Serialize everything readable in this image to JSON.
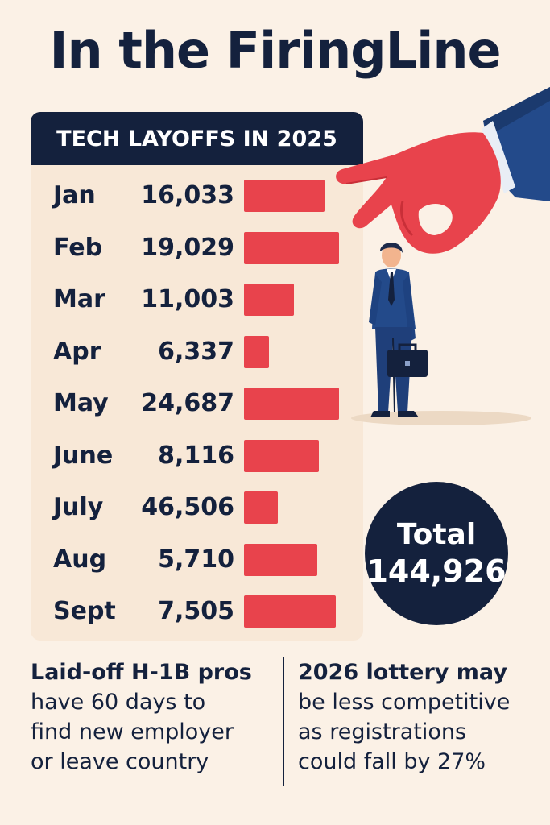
{
  "title": "In the FiringLine",
  "chart_data": {
    "type": "bar",
    "title": "TECH LAYOFFS IN 2025",
    "categories": [
      "Jan",
      "Feb",
      "Mar",
      "Apr",
      "May",
      "June",
      "July",
      "Aug",
      "Sept"
    ],
    "values": [
      16033,
      19029,
      11003,
      6337,
      24687,
      8116,
      46506,
      5710,
      7505
    ],
    "value_labels": [
      "16,033",
      "19,029",
      "11,003",
      "6,337",
      "24,687",
      "8,116",
      "46,506",
      "5,710",
      "7,505"
    ],
    "bar_fractions": [
      0.81,
      0.95,
      0.5,
      0.25,
      0.95,
      0.75,
      0.34,
      0.73,
      0.92
    ],
    "bar_color": "#e8434c",
    "orientation": "horizontal"
  },
  "total": {
    "label": "Total",
    "value": "144,926"
  },
  "notes": [
    {
      "heading": "Laid-off H-1B pros",
      "lines": [
        "have 60 days to",
        "find new employer",
        "or leave country"
      ]
    },
    {
      "heading": "2026 lottery may",
      "lines": [
        "be less competitive",
        "as registrations",
        "could fall by 27%"
      ]
    }
  ],
  "colors": {
    "navy": "#14213d",
    "red": "#e8434c",
    "background": "#fbf1e6",
    "panel": "#f8e8d7"
  },
  "icons": [
    "hand-icon",
    "businessman-icon",
    "briefcase-icon"
  ]
}
